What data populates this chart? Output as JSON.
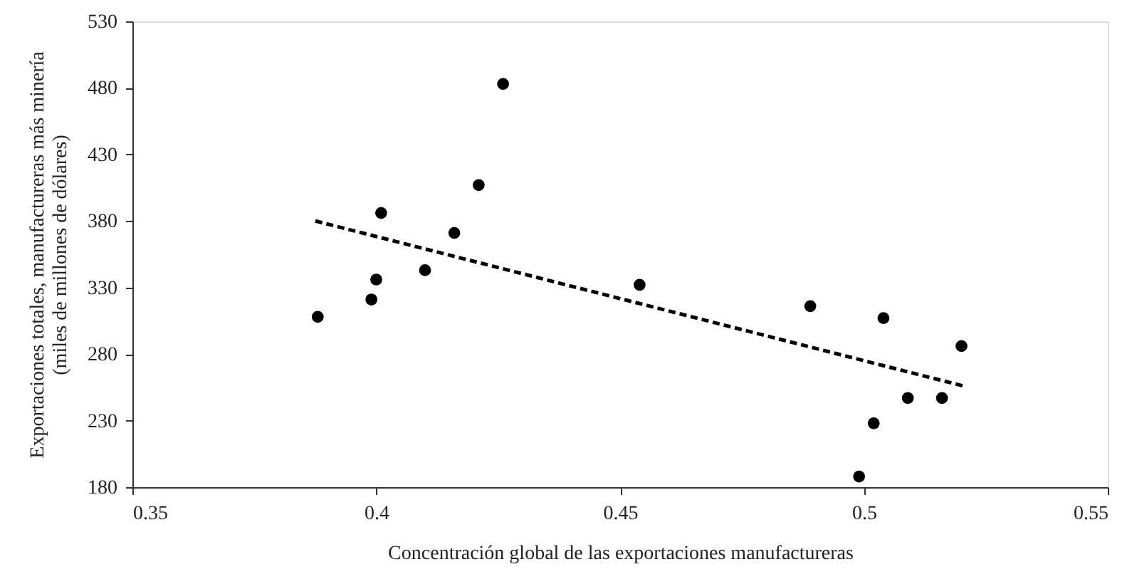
{
  "chart_data": {
    "type": "scatter",
    "xlabel": "Concentración global de las exportaciones manufactureras",
    "ylabel": "Exportaciones totales, manufactureras más minería\n(miles de millones de dólares)",
    "xlim": [
      0.35,
      0.55
    ],
    "xticks": [
      0.35,
      0.4,
      0.45,
      0.5,
      0.55
    ],
    "ylim": [
      180,
      530
    ],
    "yticks": [
      180,
      230,
      280,
      330,
      380,
      430,
      480,
      530
    ],
    "grid": false,
    "series": [
      {
        "color": "#000000",
        "marker": "circle",
        "x": [
          0.388,
          0.399,
          0.4,
          0.401,
          0.41,
          0.416,
          0.421,
          0.426,
          0.454,
          0.489,
          0.504,
          0.52,
          0.509,
          0.516,
          0.502,
          0.499
        ],
        "values": [
          308,
          321,
          336,
          386,
          343,
          371,
          407,
          483,
          332,
          316,
          307,
          286,
          247,
          247,
          228,
          188
        ]
      },
      {
        "type": "line",
        "color": "#000000",
        "line_style": "dashed",
        "marker": "none",
        "x": [
          0.3875,
          0.5204
        ],
        "values": [
          380,
          256
        ]
      }
    ]
  }
}
